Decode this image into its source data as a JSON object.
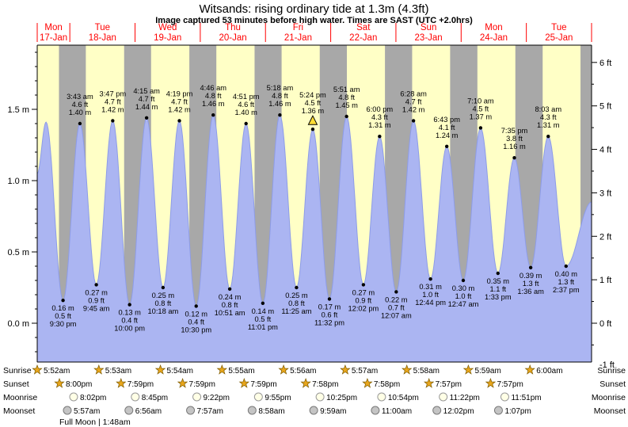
{
  "title": "Witsands: rising  ordinary tide at 1.3m (4.3ft)",
  "subtitle": "Image captured 53 minutes before high water. Times are SAST (UTC +2.0hrs)",
  "colors": {
    "day_band": "#ffffc6",
    "night_band": "#a8a8a8",
    "tide_fill": "#abb5f2",
    "tide_stroke": "#8d9ce8",
    "day_label_red": "#ff0000",
    "marker_yellow": "#ffdd33",
    "axis": "#000000"
  },
  "chart_data": {
    "type": "area",
    "title": "Witsands: rising  ordinary tide at 1.3m (4.3ft)",
    "x_range": "Mon 17-Jan 12:00 to Tue 25-Jan 24:00 SAST",
    "y_left_unit": "m",
    "y_right_unit": "ft",
    "y_left_ticks": [
      "0.0 m",
      "0.5 m",
      "1.0 m",
      "1.5 m"
    ],
    "y_left_values": [
      0,
      0.5,
      1.0,
      1.5
    ],
    "y_right_ticks": [
      "-1 ft",
      "0 ft",
      "1 ft",
      "2 ft",
      "3 ft",
      "4 ft",
      "5 ft",
      "6 ft"
    ],
    "y_right_values": [
      -1,
      0,
      1,
      2,
      3,
      4,
      5,
      6
    ],
    "categories": [
      {
        "name": "Mon",
        "date": "17-Jan"
      },
      {
        "name": "Tue",
        "date": "18-Jan"
      },
      {
        "name": "Wed",
        "date": "19-Jan"
      },
      {
        "name": "Thu",
        "date": "20-Jan"
      },
      {
        "name": "Fri",
        "date": "21-Jan"
      },
      {
        "name": "Sat",
        "date": "22-Jan"
      },
      {
        "name": "Sun",
        "date": "23-Jan"
      },
      {
        "name": "Mon",
        "date": "24-Jan"
      },
      {
        "name": "Tue",
        "date": "25-Jan"
      }
    ],
    "tide_events": [
      {
        "day": 0,
        "time": "9:30 pm",
        "m": "0.16",
        "ft": "0.5",
        "type": "low"
      },
      {
        "day": 1,
        "time": "3:43 am",
        "m": "1.40",
        "ft": "4.6",
        "type": "high"
      },
      {
        "day": 1,
        "time": "9:45 am",
        "m": "0.27",
        "ft": "0.9",
        "type": "low"
      },
      {
        "day": 1,
        "time": "3:47 pm",
        "m": "1.42",
        "ft": "4.7",
        "type": "high"
      },
      {
        "day": 1,
        "time": "10:00 pm",
        "m": "0.13",
        "ft": "0.4",
        "type": "low"
      },
      {
        "day": 2,
        "time": "4:15 am",
        "m": "1.44",
        "ft": "4.7",
        "type": "high"
      },
      {
        "day": 2,
        "time": "10:18 am",
        "m": "0.25",
        "ft": "0.8",
        "type": "low"
      },
      {
        "day": 2,
        "time": "4:19 pm",
        "m": "1.42",
        "ft": "4.7",
        "type": "high"
      },
      {
        "day": 2,
        "time": "10:30 pm",
        "m": "0.12",
        "ft": "0.4",
        "type": "low"
      },
      {
        "day": 3,
        "time": "4:46 am",
        "m": "1.46",
        "ft": "4.8",
        "type": "high"
      },
      {
        "day": 3,
        "time": "10:51 am",
        "m": "0.24",
        "ft": "0.8",
        "type": "low"
      },
      {
        "day": 3,
        "time": "4:51 pm",
        "m": "1.40",
        "ft": "4.6",
        "type": "high"
      },
      {
        "day": 3,
        "time": "11:01 pm",
        "m": "0.14",
        "ft": "0.5",
        "type": "low"
      },
      {
        "day": 4,
        "time": "5:18 am",
        "m": "1.46",
        "ft": "4.8",
        "type": "high"
      },
      {
        "day": 4,
        "time": "11:25 am",
        "m": "0.25",
        "ft": "0.8",
        "type": "low"
      },
      {
        "day": 4,
        "time": "5:24 pm",
        "m": "1.36",
        "ft": "4.5",
        "type": "high",
        "marker": true
      },
      {
        "day": 4,
        "time": "11:32 pm",
        "m": "0.17",
        "ft": "0.6",
        "type": "low"
      },
      {
        "day": 5,
        "time": "5:51 am",
        "m": "1.45",
        "ft": "4.8",
        "type": "high"
      },
      {
        "day": 5,
        "time": "12:02 pm",
        "m": "0.27",
        "ft": "0.9",
        "type": "low"
      },
      {
        "day": 5,
        "time": "6:00 pm",
        "m": "1.31",
        "ft": "4.3",
        "type": "high"
      },
      {
        "day": 6,
        "time": "12:07 am",
        "m": "0.22",
        "ft": "0.7",
        "type": "low"
      },
      {
        "day": 6,
        "time": "6:28 am",
        "m": "1.42",
        "ft": "4.7",
        "type": "high"
      },
      {
        "day": 6,
        "time": "12:44 pm",
        "m": "0.31",
        "ft": "1.0",
        "type": "low"
      },
      {
        "day": 6,
        "time": "6:43 pm",
        "m": "1.24",
        "ft": "4.1",
        "type": "high"
      },
      {
        "day": 7,
        "time": "12:47 am",
        "m": "0.30",
        "ft": "1.0",
        "type": "low"
      },
      {
        "day": 7,
        "time": "7:10 am",
        "m": "1.37",
        "ft": "4.5",
        "type": "high"
      },
      {
        "day": 7,
        "time": "1:33 pm",
        "m": "0.35",
        "ft": "1.1",
        "type": "low"
      },
      {
        "day": 7,
        "time": "7:35 pm",
        "m": "1.16",
        "ft": "3.8",
        "type": "high"
      },
      {
        "day": 8,
        "time": "1:36 am",
        "m": "0.39",
        "ft": "1.3",
        "type": "low"
      },
      {
        "day": 8,
        "time": "8:03 am",
        "m": "1.31",
        "ft": "4.3",
        "type": "high"
      },
      {
        "day": 8,
        "time": "2:37 pm",
        "m": "0.40",
        "ft": "1.3",
        "type": "low"
      }
    ],
    "curve_edges": {
      "left_start_m": 1.05,
      "left_peak_hour": 15.25,
      "left_peak_m": 1.41,
      "right_end_m": 0.85
    }
  },
  "astro": {
    "labels": {
      "sunrise": "Sunrise",
      "sunset": "Sunset",
      "moonrise": "Moonrise",
      "moonset": "Moonset"
    },
    "sunrise": [
      "5:52am",
      "5:53am",
      "5:54am",
      "5:55am",
      "5:56am",
      "5:57am",
      "5:58am",
      "5:59am",
      "6:00am"
    ],
    "sunset": [
      "8:00pm",
      "7:59pm",
      "7:59pm",
      "7:59pm",
      "7:58pm",
      "7:58pm",
      "7:57pm",
      "7:57pm"
    ],
    "moonrise": [
      "8:02pm",
      "8:45pm",
      "9:22pm",
      "9:55pm",
      "10:25pm",
      "10:54pm",
      "11:22pm",
      "11:51pm"
    ],
    "moonset": [
      "5:57am",
      "6:56am",
      "7:57am",
      "8:58am",
      "9:59am",
      "11:00am",
      "12:02pm",
      "1:07pm"
    ],
    "moon_phase": "Full Moon | 1:48am"
  }
}
